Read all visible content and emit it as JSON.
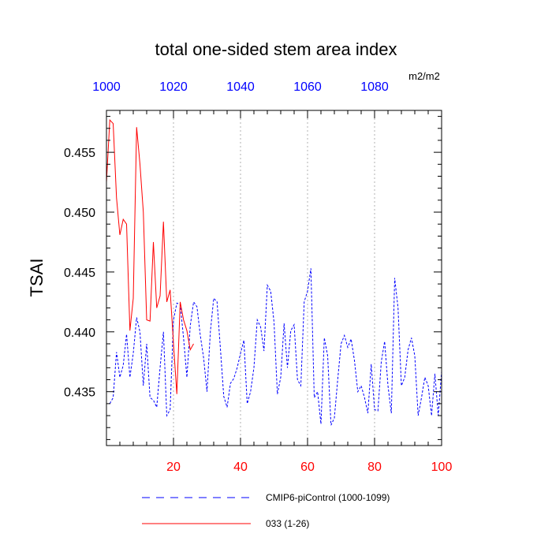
{
  "chart_data": {
    "type": "line",
    "title": "total one-sided stem area index",
    "units_label": "m2/m2",
    "ylabel": "TSAI",
    "xlim": [
      0,
      100
    ],
    "ylim": [
      0.4305,
      0.4585
    ],
    "y_ticks": [
      0.435,
      0.44,
      0.445,
      0.45,
      0.455
    ],
    "y_tick_labels": [
      "0.435",
      "0.440",
      "0.445",
      "0.450",
      "0.455"
    ],
    "bottom_x_ticks": [
      20,
      40,
      60,
      80,
      100
    ],
    "bottom_x_tick_labels": [
      "20",
      "40",
      "60",
      "80",
      "100"
    ],
    "top_x_ticks": [
      0,
      20,
      40,
      60,
      80
    ],
    "top_x_tick_labels": [
      "1000",
      "1020",
      "1040",
      "1060",
      "1080"
    ],
    "grid": "vertical dashed at bottom x ticks",
    "colors": {
      "bottom_axis_labels": "#ff0000",
      "top_axis_labels": "#0000ff"
    },
    "series": [
      {
        "name": "CMIP6-piControl (1000-1099)",
        "color": "#0000ff",
        "dash": "dashed",
        "x": [
          1,
          2,
          3,
          4,
          5,
          6,
          7,
          8,
          9,
          10,
          11,
          12,
          13,
          14,
          15,
          16,
          17,
          18,
          19,
          20,
          21,
          22,
          23,
          24,
          25,
          26,
          27,
          28,
          29,
          30,
          31,
          32,
          33,
          34,
          35,
          36,
          37,
          38,
          39,
          40,
          41,
          42,
          43,
          44,
          45,
          46,
          47,
          48,
          49,
          50,
          51,
          52,
          53,
          54,
          55,
          56,
          57,
          58,
          59,
          60,
          61,
          62,
          63,
          64,
          65,
          66,
          67,
          68,
          69,
          70,
          71,
          72,
          73,
          74,
          75,
          76,
          77,
          78,
          79,
          80,
          81,
          82,
          83,
          84,
          85,
          86,
          87,
          88,
          89,
          90,
          91,
          92,
          93,
          94,
          95,
          96,
          97,
          98,
          99,
          100
        ],
        "y": [
          0.434,
          0.4345,
          0.4383,
          0.4362,
          0.4372,
          0.4398,
          0.4362,
          0.4382,
          0.4412,
          0.44,
          0.4355,
          0.439,
          0.4345,
          0.4343,
          0.4337,
          0.437,
          0.44,
          0.433,
          0.4335,
          0.441,
          0.4424,
          0.4423,
          0.4395,
          0.4362,
          0.4405,
          0.4425,
          0.4421,
          0.4397,
          0.4378,
          0.435,
          0.44,
          0.4428,
          0.4425,
          0.4386,
          0.4346,
          0.4337,
          0.4357,
          0.4361,
          0.437,
          0.4382,
          0.4393,
          0.434,
          0.435,
          0.437,
          0.441,
          0.4404,
          0.4384,
          0.4439,
          0.4434,
          0.4408,
          0.4348,
          0.4362,
          0.4407,
          0.437,
          0.4401,
          0.4406,
          0.436,
          0.4355,
          0.4425,
          0.4434,
          0.4453,
          0.4345,
          0.435,
          0.4323,
          0.4395,
          0.438,
          0.4322,
          0.4328,
          0.436,
          0.439,
          0.4397,
          0.4387,
          0.4394,
          0.4376,
          0.435,
          0.4355,
          0.4345,
          0.4332,
          0.4373,
          0.4335,
          0.4334,
          0.4375,
          0.4392,
          0.4355,
          0.4332,
          0.4445,
          0.442,
          0.4355,
          0.4362,
          0.4385,
          0.4395,
          0.438,
          0.433,
          0.4345,
          0.4362,
          0.4355,
          0.433,
          0.4365,
          0.433,
          0.4367
        ]
      },
      {
        "name": "033 (1-26)",
        "color": "#ff0000",
        "dash": "solid",
        "x": [
          0,
          1,
          2,
          3,
          4,
          5,
          6,
          7,
          8,
          9,
          10,
          11,
          12,
          13,
          14,
          15,
          16,
          17,
          18,
          19,
          20,
          21,
          22,
          23,
          24,
          25,
          26
        ],
        "y": [
          0.4525,
          0.4577,
          0.4574,
          0.4512,
          0.4481,
          0.4494,
          0.449,
          0.4401,
          0.4428,
          0.4571,
          0.454,
          0.45,
          0.441,
          0.4409,
          0.4475,
          0.442,
          0.443,
          0.4492,
          0.4425,
          0.4435,
          0.439,
          0.4348,
          0.4425,
          0.441,
          0.4401,
          0.4385,
          0.439
        ]
      }
    ],
    "legend": {
      "placement": "bottom",
      "entries": [
        "CMIP6-piControl (1000-1099)",
        "033 (1-26)"
      ]
    }
  }
}
